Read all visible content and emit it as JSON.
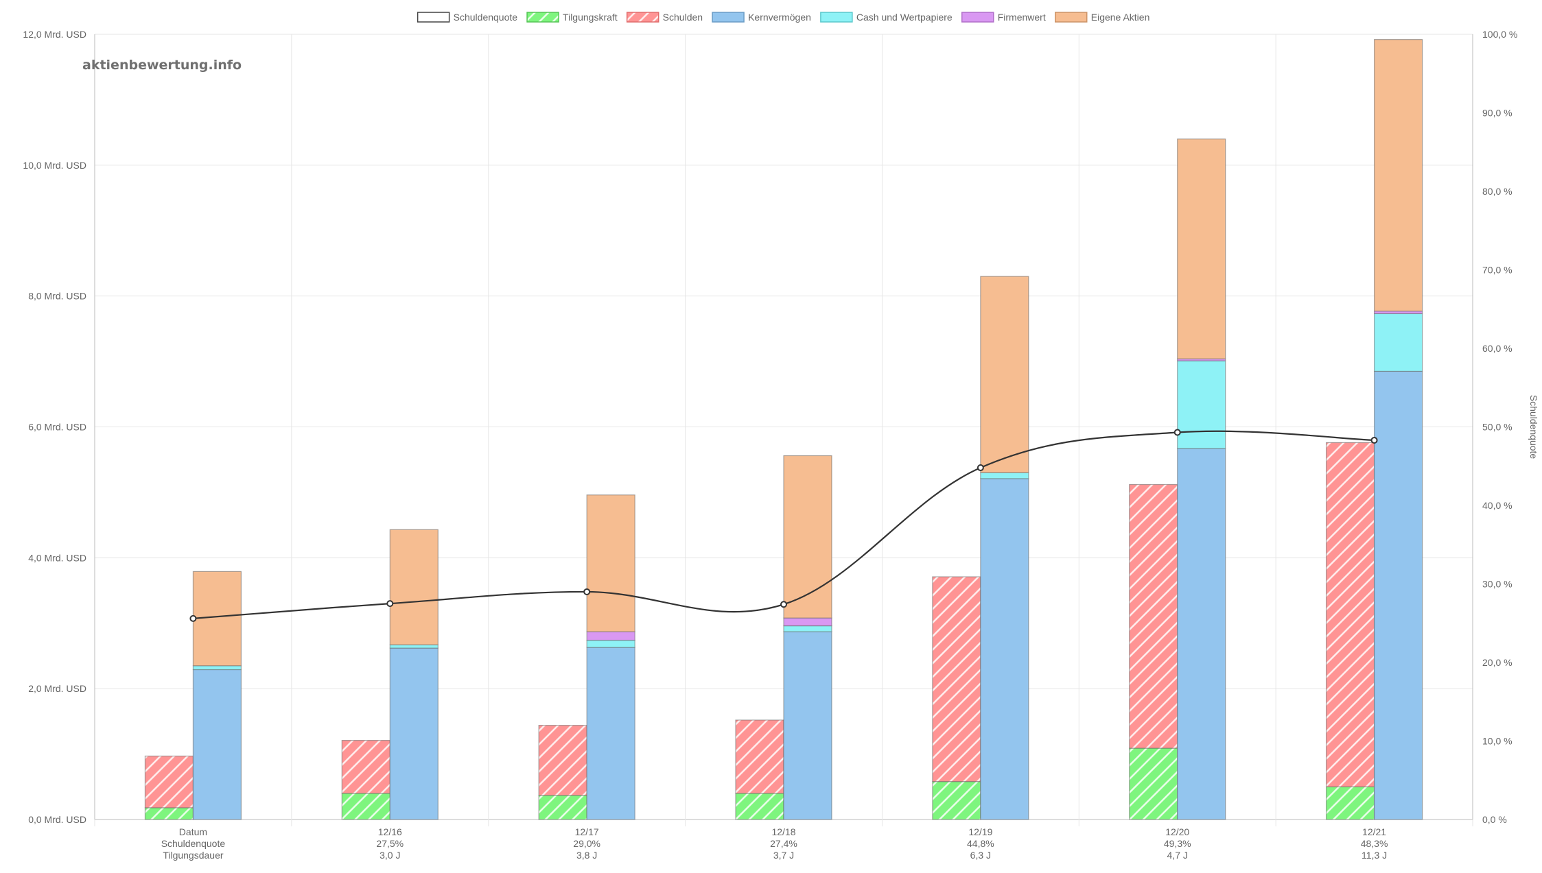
{
  "watermark": "aktienbewertung.info",
  "chart_data": {
    "type": "bar",
    "legend": [
      {
        "label": "Schuldenquote",
        "color": "#ffffff",
        "stroke": "#444444",
        "pattern": false
      },
      {
        "label": "Tilgungskraft",
        "color": "#7ef57e",
        "stroke": "#55c455",
        "pattern": true
      },
      {
        "label": "Schulden",
        "color": "#ff9494",
        "stroke": "#e06c6c",
        "pattern": true
      },
      {
        "label": "Kernvermögen",
        "color": "#93c5ee",
        "stroke": "#6a9cc5",
        "pattern": false
      },
      {
        "label": "Cash und Wertpapiere",
        "color": "#8ef2f6",
        "stroke": "#5cc8cc",
        "pattern": false
      },
      {
        "label": "Firmenwert",
        "color": "#d998f2",
        "stroke": "#b06fc9",
        "pattern": false
      },
      {
        "label": "Eigene Aktien",
        "color": "#f6bd91",
        "stroke": "#cc9468",
        "pattern": false
      }
    ],
    "legend_position": "top-center",
    "categories": [
      "Datum",
      "12/16",
      "12/17",
      "12/18",
      "12/19",
      "12/20",
      "12/21"
    ],
    "category_lines": [
      [
        "Datum",
        "Schuldenquote",
        "Tilgungsdauer"
      ],
      [
        "12/16",
        "27,5%",
        "3,0 J"
      ],
      [
        "12/17",
        "29,0%",
        "3,8 J"
      ],
      [
        "12/18",
        "27,4%",
        "3,7 J"
      ],
      [
        "12/19",
        "44,8%",
        "6,3 J"
      ],
      [
        "12/20",
        "49,3%",
        "4,7 J"
      ],
      [
        "12/21",
        "48,3%",
        "11,3 J"
      ]
    ],
    "left_stack": {
      "Tilgungskraft": [
        0.18,
        0.4,
        0.37,
        0.4,
        0.58,
        1.09,
        0.5
      ],
      "Schulden": [
        0.79,
        0.81,
        1.07,
        1.12,
        3.13,
        4.03,
        5.26
      ]
    },
    "right_stack": {
      "Kernvermögen": [
        2.29,
        2.62,
        2.63,
        2.87,
        5.21,
        5.67,
        6.85
      ],
      "Cash und Wertpapiere": [
        0.06,
        0.05,
        0.11,
        0.09,
        0.09,
        1.34,
        0.88
      ],
      "Firmenwert": [
        0.0,
        0.0,
        0.13,
        0.12,
        0.0,
        0.03,
        0.04
      ],
      "Eigene Aktien": [
        1.44,
        1.76,
        2.09,
        2.48,
        3.0,
        3.36,
        4.15
      ]
    },
    "line_series": {
      "name": "Schuldenquote",
      "values": [
        25.6,
        27.5,
        29.0,
        27.4,
        44.8,
        49.3,
        48.3
      ],
      "color": "#333333"
    },
    "y_left": {
      "min": 0,
      "max": 12,
      "step": 2,
      "tick_labels": [
        "0,0 Mrd. USD",
        "2,0 Mrd. USD",
        "4,0 Mrd. USD",
        "6,0 Mrd. USD",
        "8,0 Mrd. USD",
        "10,0 Mrd. USD",
        "12,0 Mrd. USD"
      ]
    },
    "y_right": {
      "min": 0,
      "max": 100,
      "step": 10,
      "label": "Schuldenquote",
      "tick_labels": [
        "0,0 %",
        "10,0 %",
        "20,0 %",
        "30,0 %",
        "40,0 %",
        "50,0 %",
        "60,0 %",
        "70,0 %",
        "80,0 %",
        "90,0 %",
        "100,0 %"
      ]
    },
    "grid": true
  }
}
